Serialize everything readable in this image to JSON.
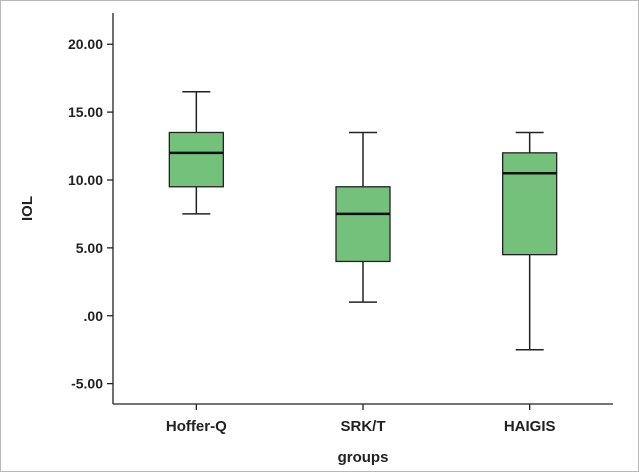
{
  "chart_data": {
    "type": "boxplot",
    "xlabel": "groups",
    "ylabel": "IOL",
    "ylim": [
      -6.5,
      22.3
    ],
    "yticks": [
      -5.0,
      0.0,
      5.0,
      10.0,
      15.0,
      20.0
    ],
    "ytick_labels": [
      "-5.00",
      ".00",
      "5.00",
      "10.00",
      "15.00",
      "20.00"
    ],
    "categories": [
      "Hoffer-Q",
      "SRK/T",
      "HAIGIS"
    ],
    "boxes": [
      {
        "category": "Hoffer-Q",
        "min": 7.5,
        "q1": 9.5,
        "median": 12.0,
        "q3": 13.5,
        "max": 16.5
      },
      {
        "category": "SRK/T",
        "min": 1.0,
        "q1": 4.0,
        "median": 7.5,
        "q3": 9.5,
        "max": 13.5
      },
      {
        "category": "HAIGIS",
        "min": -2.5,
        "q1": 4.5,
        "median": 10.5,
        "q3": 12.0,
        "max": 13.5
      }
    ],
    "colors": {
      "box_fill": "#74c17c",
      "box_stroke": "#222222",
      "axis": "#222222"
    },
    "grid": false,
    "legend": "none"
  }
}
